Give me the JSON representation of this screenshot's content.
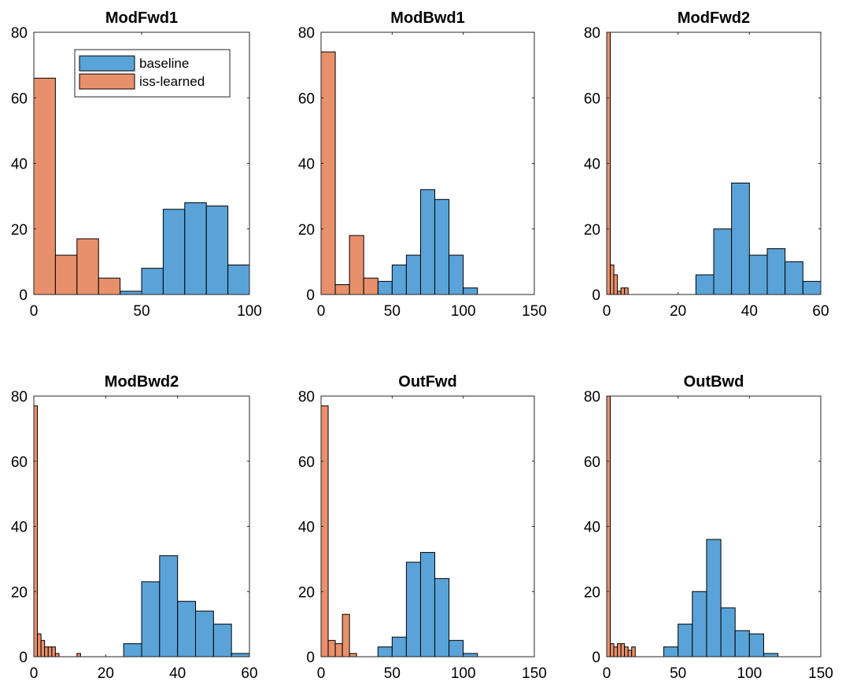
{
  "colors": {
    "baseline": "#5aa3d8",
    "iss_learned": "#e8906c",
    "axes": "#262626",
    "background": "#ffffff"
  },
  "chart_data": [
    {
      "type": "bar",
      "title": "ModFwd1",
      "xlim": [
        0,
        100
      ],
      "ylim": [
        0,
        80
      ],
      "xticks": [
        0,
        50,
        100
      ],
      "yticks": [
        0,
        20,
        40,
        60,
        80
      ],
      "legend": {
        "placement": "top-right",
        "entries": [
          "baseline",
          "iss-learned"
        ]
      },
      "series": [
        {
          "name": "baseline",
          "color": "#5aa3d8",
          "bins": [
            [
              30,
              40,
              1
            ],
            [
              40,
              50,
              1
            ],
            [
              50,
              60,
              8
            ],
            [
              60,
              70,
              26
            ],
            [
              70,
              80,
              28
            ],
            [
              80,
              90,
              27
            ],
            [
              90,
              100,
              9
            ]
          ]
        },
        {
          "name": "iss-learned",
          "color": "#e8906c",
          "bins": [
            [
              0,
              10,
              66
            ],
            [
              10,
              20,
              12
            ],
            [
              20,
              30,
              17
            ],
            [
              30,
              40,
              5
            ]
          ]
        }
      ]
    },
    {
      "type": "bar",
      "title": "ModBwd1",
      "xlim": [
        0,
        150
      ],
      "ylim": [
        0,
        80
      ],
      "xticks": [
        0,
        50,
        100,
        150
      ],
      "yticks": [
        0,
        20,
        40,
        60,
        80
      ],
      "series": [
        {
          "name": "baseline",
          "color": "#5aa3d8",
          "bins": [
            [
              40,
              50,
              4
            ],
            [
              50,
              60,
              9
            ],
            [
              60,
              70,
              12
            ],
            [
              70,
              80,
              32
            ],
            [
              80,
              90,
              29
            ],
            [
              90,
              100,
              12
            ],
            [
              100,
              110,
              2
            ]
          ]
        },
        {
          "name": "iss-learned",
          "color": "#e8906c",
          "bins": [
            [
              0,
              10,
              74
            ],
            [
              10,
              20,
              3
            ],
            [
              20,
              30,
              18
            ],
            [
              30,
              40,
              5
            ]
          ]
        }
      ]
    },
    {
      "type": "bar",
      "title": "ModFwd2",
      "xlim": [
        0,
        60
      ],
      "ylim": [
        0,
        80
      ],
      "xticks": [
        0,
        20,
        40,
        60
      ],
      "yticks": [
        0,
        20,
        40,
        60,
        80
      ],
      "series": [
        {
          "name": "baseline",
          "color": "#5aa3d8",
          "bins": [
            [
              25,
              30,
              6
            ],
            [
              30,
              35,
              20
            ],
            [
              35,
              40,
              34
            ],
            [
              40,
              45,
              12
            ],
            [
              45,
              50,
              14
            ],
            [
              50,
              55,
              10
            ],
            [
              55,
              60,
              4
            ]
          ]
        },
        {
          "name": "iss-learned",
          "color": "#e8906c",
          "bins": [
            [
              0,
              1,
              80
            ],
            [
              1,
              2,
              9
            ],
            [
              2,
              3,
              6
            ],
            [
              3,
              4,
              1
            ],
            [
              4,
              5,
              2
            ],
            [
              5,
              6,
              2
            ]
          ]
        }
      ]
    },
    {
      "type": "bar",
      "title": "ModBwd2",
      "xlim": [
        0,
        60
      ],
      "ylim": [
        0,
        80
      ],
      "xticks": [
        0,
        20,
        40,
        60
      ],
      "yticks": [
        0,
        20,
        40,
        60,
        80
      ],
      "series": [
        {
          "name": "baseline",
          "color": "#5aa3d8",
          "bins": [
            [
              25,
              30,
              4
            ],
            [
              30,
              35,
              23
            ],
            [
              35,
              40,
              31
            ],
            [
              40,
              45,
              17
            ],
            [
              45,
              50,
              14
            ],
            [
              50,
              55,
              10
            ],
            [
              55,
              60,
              1
            ]
          ]
        },
        {
          "name": "iss-learned",
          "color": "#e8906c",
          "bins": [
            [
              0,
              1,
              77
            ],
            [
              1,
              2,
              7
            ],
            [
              2,
              3,
              5
            ],
            [
              3,
              4,
              3
            ],
            [
              4,
              5,
              3
            ],
            [
              5,
              6,
              3
            ],
            [
              6,
              7,
              1
            ],
            [
              12,
              13,
              1
            ]
          ]
        }
      ]
    },
    {
      "type": "bar",
      "title": "OutFwd",
      "xlim": [
        0,
        150
      ],
      "ylim": [
        0,
        80
      ],
      "xticks": [
        0,
        50,
        100,
        150
      ],
      "yticks": [
        0,
        20,
        40,
        60,
        80
      ],
      "series": [
        {
          "name": "baseline",
          "color": "#5aa3d8",
          "bins": [
            [
              40,
              50,
              3
            ],
            [
              50,
              60,
              6
            ],
            [
              60,
              70,
              29
            ],
            [
              70,
              80,
              32
            ],
            [
              80,
              90,
              24
            ],
            [
              90,
              100,
              5
            ],
            [
              100,
              110,
              1
            ]
          ]
        },
        {
          "name": "iss-learned",
          "color": "#e8906c",
          "bins": [
            [
              0,
              5,
              77
            ],
            [
              5,
              10,
              5
            ],
            [
              10,
              15,
              4
            ],
            [
              15,
              20,
              13
            ],
            [
              20,
              25,
              1
            ]
          ]
        }
      ]
    },
    {
      "type": "bar",
      "title": "OutBwd",
      "xlim": [
        0,
        150
      ],
      "ylim": [
        0,
        80
      ],
      "xticks": [
        0,
        50,
        100,
        150
      ],
      "yticks": [
        0,
        20,
        40,
        60,
        80
      ],
      "series": [
        {
          "name": "baseline",
          "color": "#5aa3d8",
          "bins": [
            [
              40,
              50,
              3
            ],
            [
              50,
              60,
              10
            ],
            [
              60,
              70,
              20
            ],
            [
              70,
              80,
              36
            ],
            [
              80,
              90,
              15
            ],
            [
              90,
              100,
              8
            ],
            [
              100,
              110,
              7
            ],
            [
              110,
              120,
              1
            ]
          ]
        },
        {
          "name": "iss-learned",
          "color": "#e8906c",
          "bins": [
            [
              0,
              2.5,
              80
            ],
            [
              2.5,
              5,
              4
            ],
            [
              5,
              7.5,
              3
            ],
            [
              7.5,
              10,
              4
            ],
            [
              10,
              12.5,
              4
            ],
            [
              12.5,
              15,
              3
            ],
            [
              15,
              17.5,
              2
            ],
            [
              17.5,
              20,
              3
            ]
          ]
        }
      ]
    }
  ]
}
